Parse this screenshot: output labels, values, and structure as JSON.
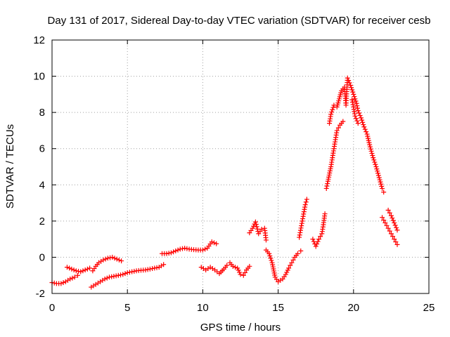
{
  "chart_data": {
    "type": "scatter",
    "title": "Day 131 of 2017, Sidereal Day-to-day VTEC variation (SDTVAR) for receiver cesb",
    "xlabel": "GPS time / hours",
    "ylabel": "SDTVAR / TECUs",
    "xlim": [
      0,
      25
    ],
    "ylim": [
      -2,
      12
    ],
    "xticks": [
      0,
      5,
      10,
      15,
      20,
      25
    ],
    "yticks": [
      -2,
      0,
      2,
      4,
      6,
      8,
      10,
      12
    ],
    "grid": true,
    "marker": "plus",
    "color": "#ff0000",
    "segments": [
      {
        "name": "seg-a",
        "points": [
          [
            0.0,
            -1.4
          ],
          [
            0.3,
            -1.45
          ],
          [
            0.6,
            -1.45
          ],
          [
            0.9,
            -1.35
          ],
          [
            1.2,
            -1.2
          ],
          [
            1.5,
            -1.1
          ],
          [
            1.7,
            -1.0
          ]
        ]
      },
      {
        "name": "seg-b",
        "points": [
          [
            1.0,
            -0.55
          ],
          [
            1.3,
            -0.65
          ],
          [
            1.6,
            -0.75
          ],
          [
            1.9,
            -0.8
          ],
          [
            2.2,
            -0.7
          ],
          [
            2.5,
            -0.6
          ],
          [
            2.7,
            -0.75
          ],
          [
            2.9,
            -0.5
          ],
          [
            3.1,
            -0.3
          ],
          [
            3.4,
            -0.15
          ],
          [
            3.7,
            -0.05
          ],
          [
            4.0,
            0.0
          ],
          [
            4.3,
            -0.1
          ],
          [
            4.6,
            -0.2
          ]
        ]
      },
      {
        "name": "seg-c",
        "points": [
          [
            2.6,
            -1.65
          ],
          [
            2.9,
            -1.5
          ],
          [
            3.2,
            -1.35
          ],
          [
            3.5,
            -1.2
          ],
          [
            3.8,
            -1.1
          ],
          [
            4.1,
            -1.05
          ],
          [
            4.4,
            -1.0
          ],
          [
            4.7,
            -0.95
          ],
          [
            5.0,
            -0.85
          ],
          [
            5.3,
            -0.8
          ],
          [
            5.6,
            -0.75
          ],
          [
            5.9,
            -0.72
          ],
          [
            6.2,
            -0.7
          ],
          [
            6.5,
            -0.65
          ],
          [
            6.8,
            -0.6
          ],
          [
            7.1,
            -0.55
          ],
          [
            7.4,
            -0.4
          ]
        ]
      },
      {
        "name": "seg-d",
        "points": [
          [
            7.3,
            0.2
          ],
          [
            7.6,
            0.2
          ],
          [
            7.9,
            0.25
          ],
          [
            8.2,
            0.35
          ],
          [
            8.5,
            0.45
          ],
          [
            8.8,
            0.5
          ],
          [
            9.1,
            0.45
          ],
          [
            9.4,
            0.42
          ],
          [
            9.7,
            0.4
          ],
          [
            10.0,
            0.4
          ],
          [
            10.3,
            0.5
          ],
          [
            10.6,
            0.85
          ],
          [
            10.9,
            0.75
          ]
        ]
      },
      {
        "name": "seg-e",
        "points": [
          [
            9.9,
            -0.55
          ],
          [
            10.2,
            -0.7
          ],
          [
            10.5,
            -0.55
          ],
          [
            10.8,
            -0.7
          ],
          [
            11.1,
            -0.9
          ],
          [
            11.4,
            -0.65
          ],
          [
            11.6,
            -0.45
          ],
          [
            11.8,
            -0.3
          ],
          [
            12.0,
            -0.5
          ],
          [
            12.3,
            -0.6
          ],
          [
            12.5,
            -0.95
          ],
          [
            12.7,
            -1.0
          ],
          [
            12.9,
            -0.7
          ],
          [
            13.1,
            -0.5
          ]
        ]
      },
      {
        "name": "seg-f",
        "points": [
          [
            13.1,
            1.35
          ],
          [
            13.3,
            1.6
          ],
          [
            13.5,
            1.95
          ],
          [
            13.7,
            1.3
          ],
          [
            13.9,
            1.55
          ],
          [
            14.1,
            1.6
          ],
          [
            14.2,
            0.95
          ]
        ]
      },
      {
        "name": "seg-g",
        "points": [
          [
            14.2,
            0.4
          ],
          [
            14.4,
            0.2
          ],
          [
            14.6,
            -0.3
          ],
          [
            14.8,
            -1.1
          ],
          [
            15.0,
            -1.35
          ],
          [
            15.3,
            -1.2
          ],
          [
            15.5,
            -0.95
          ],
          [
            15.7,
            -0.6
          ],
          [
            15.9,
            -0.3
          ],
          [
            16.1,
            0.0
          ],
          [
            16.3,
            0.2
          ],
          [
            16.5,
            0.35
          ]
        ]
      },
      {
        "name": "seg-h",
        "points": [
          [
            16.4,
            1.1
          ],
          [
            16.6,
            2.0
          ],
          [
            16.8,
            2.9
          ],
          [
            16.9,
            3.2
          ]
        ]
      },
      {
        "name": "seg-i",
        "points": [
          [
            17.3,
            1.0
          ],
          [
            17.5,
            0.6
          ],
          [
            17.7,
            1.0
          ],
          [
            17.9,
            1.3
          ],
          [
            18.0,
            1.8
          ],
          [
            18.1,
            2.4
          ]
        ]
      },
      {
        "name": "seg-j",
        "points": [
          [
            18.2,
            3.8
          ],
          [
            18.3,
            4.2
          ],
          [
            18.5,
            5.0
          ],
          [
            18.7,
            6.0
          ],
          [
            18.9,
            7.0
          ],
          [
            19.1,
            7.3
          ],
          [
            19.3,
            7.5
          ]
        ]
      },
      {
        "name": "seg-k",
        "points": [
          [
            18.4,
            7.4
          ],
          [
            18.5,
            7.9
          ],
          [
            18.7,
            8.4
          ],
          [
            18.9,
            8.3
          ],
          [
            19.2,
            9.2
          ],
          [
            19.4,
            9.4
          ],
          [
            19.5,
            8.4
          ],
          [
            19.6,
            9.9
          ],
          [
            19.8,
            9.5
          ],
          [
            20.0,
            9.0
          ],
          [
            20.2,
            8.5
          ],
          [
            20.3,
            8.1
          ],
          [
            20.5,
            7.7
          ],
          [
            20.7,
            7.2
          ],
          [
            20.9,
            6.8
          ],
          [
            21.1,
            6.1
          ],
          [
            21.3,
            5.5
          ],
          [
            21.5,
            5.0
          ],
          [
            21.7,
            4.4
          ],
          [
            21.9,
            3.8
          ],
          [
            22.0,
            3.6
          ]
        ]
      },
      {
        "name": "seg-l",
        "points": [
          [
            19.9,
            8.7
          ],
          [
            20.0,
            8.3
          ],
          [
            20.1,
            7.8
          ],
          [
            20.3,
            7.4
          ]
        ]
      },
      {
        "name": "seg-m",
        "points": [
          [
            21.9,
            2.2
          ],
          [
            22.1,
            1.9
          ],
          [
            22.3,
            1.6
          ],
          [
            22.5,
            1.3
          ],
          [
            22.7,
            1.0
          ],
          [
            22.9,
            0.7
          ]
        ]
      },
      {
        "name": "seg-n",
        "points": [
          [
            22.3,
            2.6
          ],
          [
            22.5,
            2.3
          ],
          [
            22.7,
            1.9
          ],
          [
            22.9,
            1.5
          ]
        ]
      }
    ]
  }
}
